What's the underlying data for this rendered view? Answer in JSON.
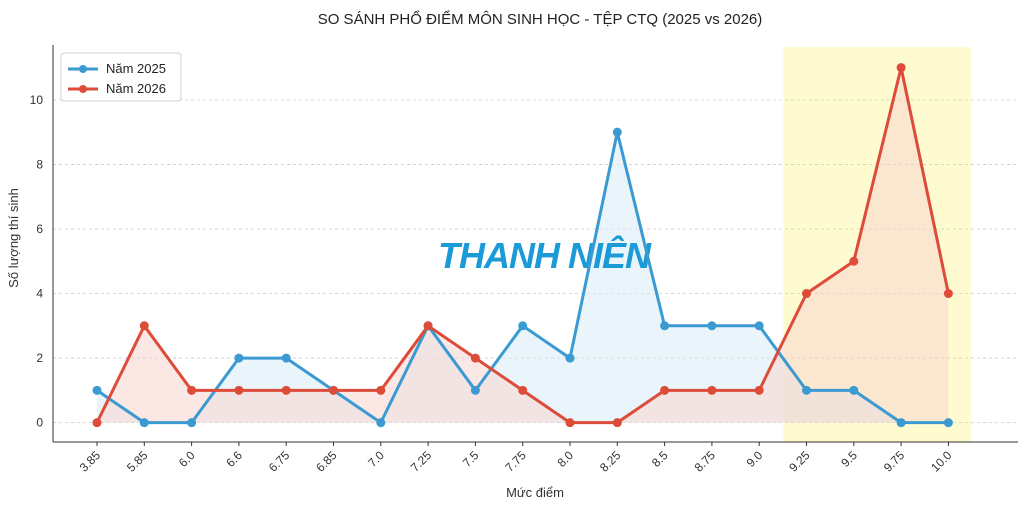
{
  "watermark": "THANH NIÊN",
  "chart_data": {
    "type": "line",
    "title": "SO SÁNH PHỔ ĐIỂM MÔN SINH HỌC - TỆP CTQ (2025 vs 2026)",
    "xlabel": "Mức điểm",
    "ylabel": "Số lượng thí sinh",
    "categories": [
      "3.85",
      "5.85",
      "6.0",
      "6.6",
      "6.75",
      "6.85",
      "7.0",
      "7.25",
      "7.5",
      "7.75",
      "8.0",
      "8.25",
      "8.5",
      "8.75",
      "9.0",
      "9.25",
      "9.5",
      "9.75",
      "10.0"
    ],
    "yticks": [
      0,
      2,
      4,
      6,
      8,
      10
    ],
    "ylim": [
      -0.6,
      11.7
    ],
    "grid": "horizontal dashed",
    "legend_position": "top-left",
    "highlight_range": [
      "9.25",
      "10.0"
    ],
    "colors": {
      "highlight": "#fffbd0"
    },
    "series": [
      {
        "name": "Năm 2025",
        "color": "#3a9ad1",
        "fill": "#d7ecf6",
        "values": [
          1,
          0,
          0,
          2,
          2,
          1,
          0,
          3,
          1,
          3,
          2,
          9,
          3,
          3,
          3,
          1,
          1,
          0,
          0
        ]
      },
      {
        "name": "Năm 2026",
        "color": "#dd4b39",
        "fill": "#f8d6d0",
        "values": [
          0,
          3,
          1,
          1,
          1,
          1,
          1,
          3,
          2,
          1,
          0,
          0,
          1,
          1,
          1,
          4,
          5,
          11,
          4
        ]
      }
    ]
  }
}
